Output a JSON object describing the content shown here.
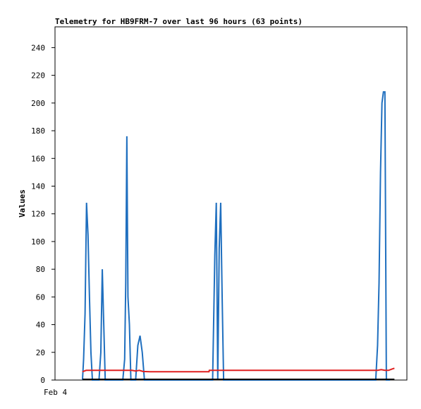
{
  "chart_data": {
    "type": "line",
    "title": "Telemetry for HB9FRM-7 over last 96 hours (63 points)",
    "ylabel": "Values",
    "xlabel": "",
    "ylim": [
      0,
      255
    ],
    "yticks": [
      0,
      20,
      40,
      60,
      80,
      100,
      120,
      140,
      160,
      180,
      200,
      220,
      240
    ],
    "xlim": [
      0,
      96
    ],
    "xtick_labels": [
      {
        "label": "Feb 4",
        "x": 0
      }
    ],
    "grid": false,
    "colors": {
      "series1": "#1f6fbf",
      "series2": "#e02020",
      "baseline": "#000000"
    },
    "series": [
      {
        "key": "series1",
        "x": [
          7.5,
          7.8,
          8.2,
          8.6,
          9.0,
          9.4,
          9.8,
          10.2,
          10.6,
          12.0,
          12.5,
          12.9,
          13.3,
          13.7,
          14.0,
          18.5,
          19.0,
          19.3,
          19.6,
          19.9,
          20.3,
          20.7,
          21.1,
          22.0,
          22.6,
          23.2,
          23.8,
          24.4,
          43.0,
          43.6,
          44.0,
          44.4,
          44.8,
          45.2,
          45.6,
          46.0,
          46.4,
          46.8,
          87.5,
          88.0,
          88.4,
          88.8,
          89.2,
          89.6,
          90.0,
          90.4,
          90.8,
          91.4
        ],
        "values": [
          0,
          15,
          48,
          128,
          105,
          60,
          20,
          0,
          0,
          0,
          20,
          80,
          40,
          0,
          0,
          0,
          15,
          70,
          176,
          60,
          40,
          0,
          0,
          0,
          25,
          32,
          20,
          0,
          0,
          90,
          128,
          0,
          95,
          128,
          60,
          0,
          0,
          0,
          0,
          25,
          70,
          150,
          200,
          208,
          208,
          0,
          0,
          0
        ]
      },
      {
        "key": "series2",
        "x": [
          7.5,
          8.5,
          10,
          15,
          20,
          21,
          22,
          23,
          24,
          26,
          30,
          35,
          40,
          42,
          42.1,
          45,
          50,
          60,
          70,
          80,
          88,
          89,
          90,
          91,
          92,
          92.6
        ],
        "values": [
          6,
          7,
          7,
          7,
          7,
          7,
          6.5,
          7,
          6.2,
          6,
          6,
          6,
          6,
          6,
          7,
          7,
          7,
          7,
          7,
          7,
          7,
          7.5,
          7,
          7,
          8,
          8.5
        ]
      }
    ]
  }
}
